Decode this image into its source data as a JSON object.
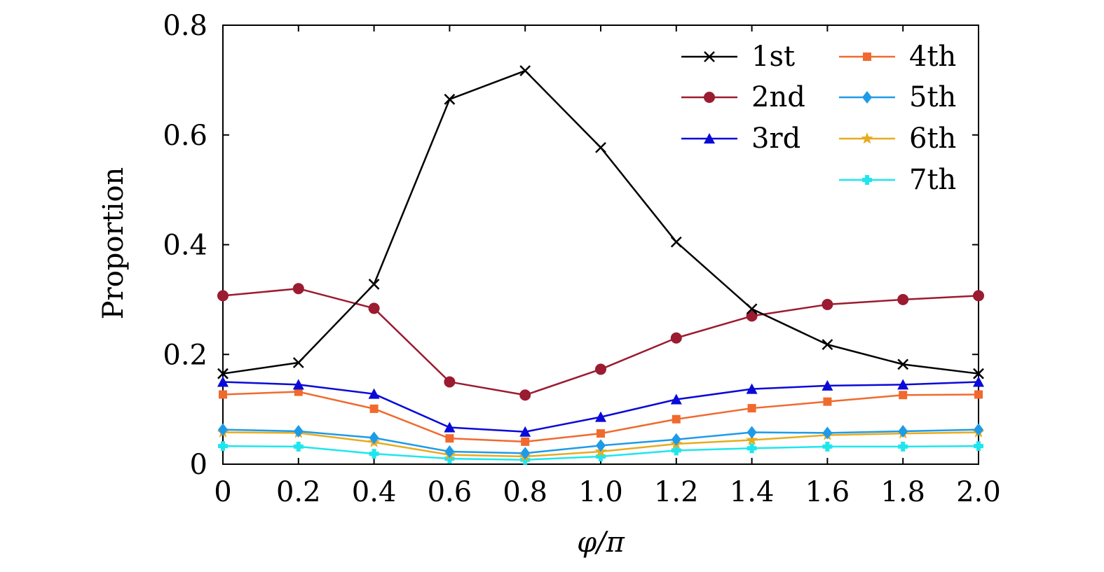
{
  "chart_data": {
    "type": "line",
    "xlabel": "φ/π",
    "ylabel": "Proportion",
    "xlim": [
      0,
      2.0
    ],
    "ylim": [
      0,
      0.8
    ],
    "xticks": [
      0,
      0.2,
      0.4,
      0.6,
      0.8,
      1.0,
      1.2,
      1.4,
      1.6,
      1.8,
      2.0
    ],
    "xtick_labels": [
      "0",
      "0.2",
      "0.4",
      "0.6",
      "0.8",
      "1.0",
      "1.2",
      "1.4",
      "1.6",
      "1.8",
      "2.0"
    ],
    "yticks": [
      0,
      0.2,
      0.4,
      0.6,
      0.8
    ],
    "ytick_labels": [
      "0",
      "0.2",
      "0.4",
      "0.6",
      "0.8"
    ],
    "grid": false,
    "legend_position": "top-right",
    "x": [
      0,
      0.2,
      0.4,
      0.6,
      0.8,
      1.0,
      1.2,
      1.4,
      1.6,
      1.8,
      2.0
    ],
    "series": [
      {
        "name": "1st",
        "color": "#000000",
        "marker": "x",
        "values": [
          0.165,
          0.185,
          0.328,
          0.665,
          0.717,
          0.577,
          0.405,
          0.283,
          0.218,
          0.182,
          0.165
        ]
      },
      {
        "name": "2nd",
        "color": "#9b1b30",
        "marker": "circle",
        "values": [
          0.307,
          0.32,
          0.284,
          0.15,
          0.126,
          0.173,
          0.23,
          0.27,
          0.291,
          0.3,
          0.307
        ]
      },
      {
        "name": "3rd",
        "color": "#0a0ad8",
        "marker": "triangle",
        "values": [
          0.15,
          0.145,
          0.128,
          0.067,
          0.059,
          0.086,
          0.118,
          0.137,
          0.143,
          0.145,
          0.15
        ]
      },
      {
        "name": "4th",
        "color": "#f06a2e",
        "marker": "square",
        "values": [
          0.127,
          0.132,
          0.101,
          0.047,
          0.041,
          0.056,
          0.082,
          0.102,
          0.114,
          0.126,
          0.127
        ]
      },
      {
        "name": "5th",
        "color": "#1e9be8",
        "marker": "diamond",
        "values": [
          0.063,
          0.06,
          0.048,
          0.023,
          0.02,
          0.034,
          0.045,
          0.058,
          0.057,
          0.06,
          0.063
        ]
      },
      {
        "name": "6th",
        "color": "#e6ac1f",
        "marker": "star",
        "values": [
          0.058,
          0.057,
          0.04,
          0.017,
          0.014,
          0.023,
          0.037,
          0.044,
          0.053,
          0.056,
          0.058
        ]
      },
      {
        "name": "7th",
        "color": "#1ee6ee",
        "marker": "plus",
        "values": [
          0.033,
          0.032,
          0.019,
          0.01,
          0.008,
          0.014,
          0.025,
          0.029,
          0.032,
          0.032,
          0.033
        ]
      }
    ]
  }
}
